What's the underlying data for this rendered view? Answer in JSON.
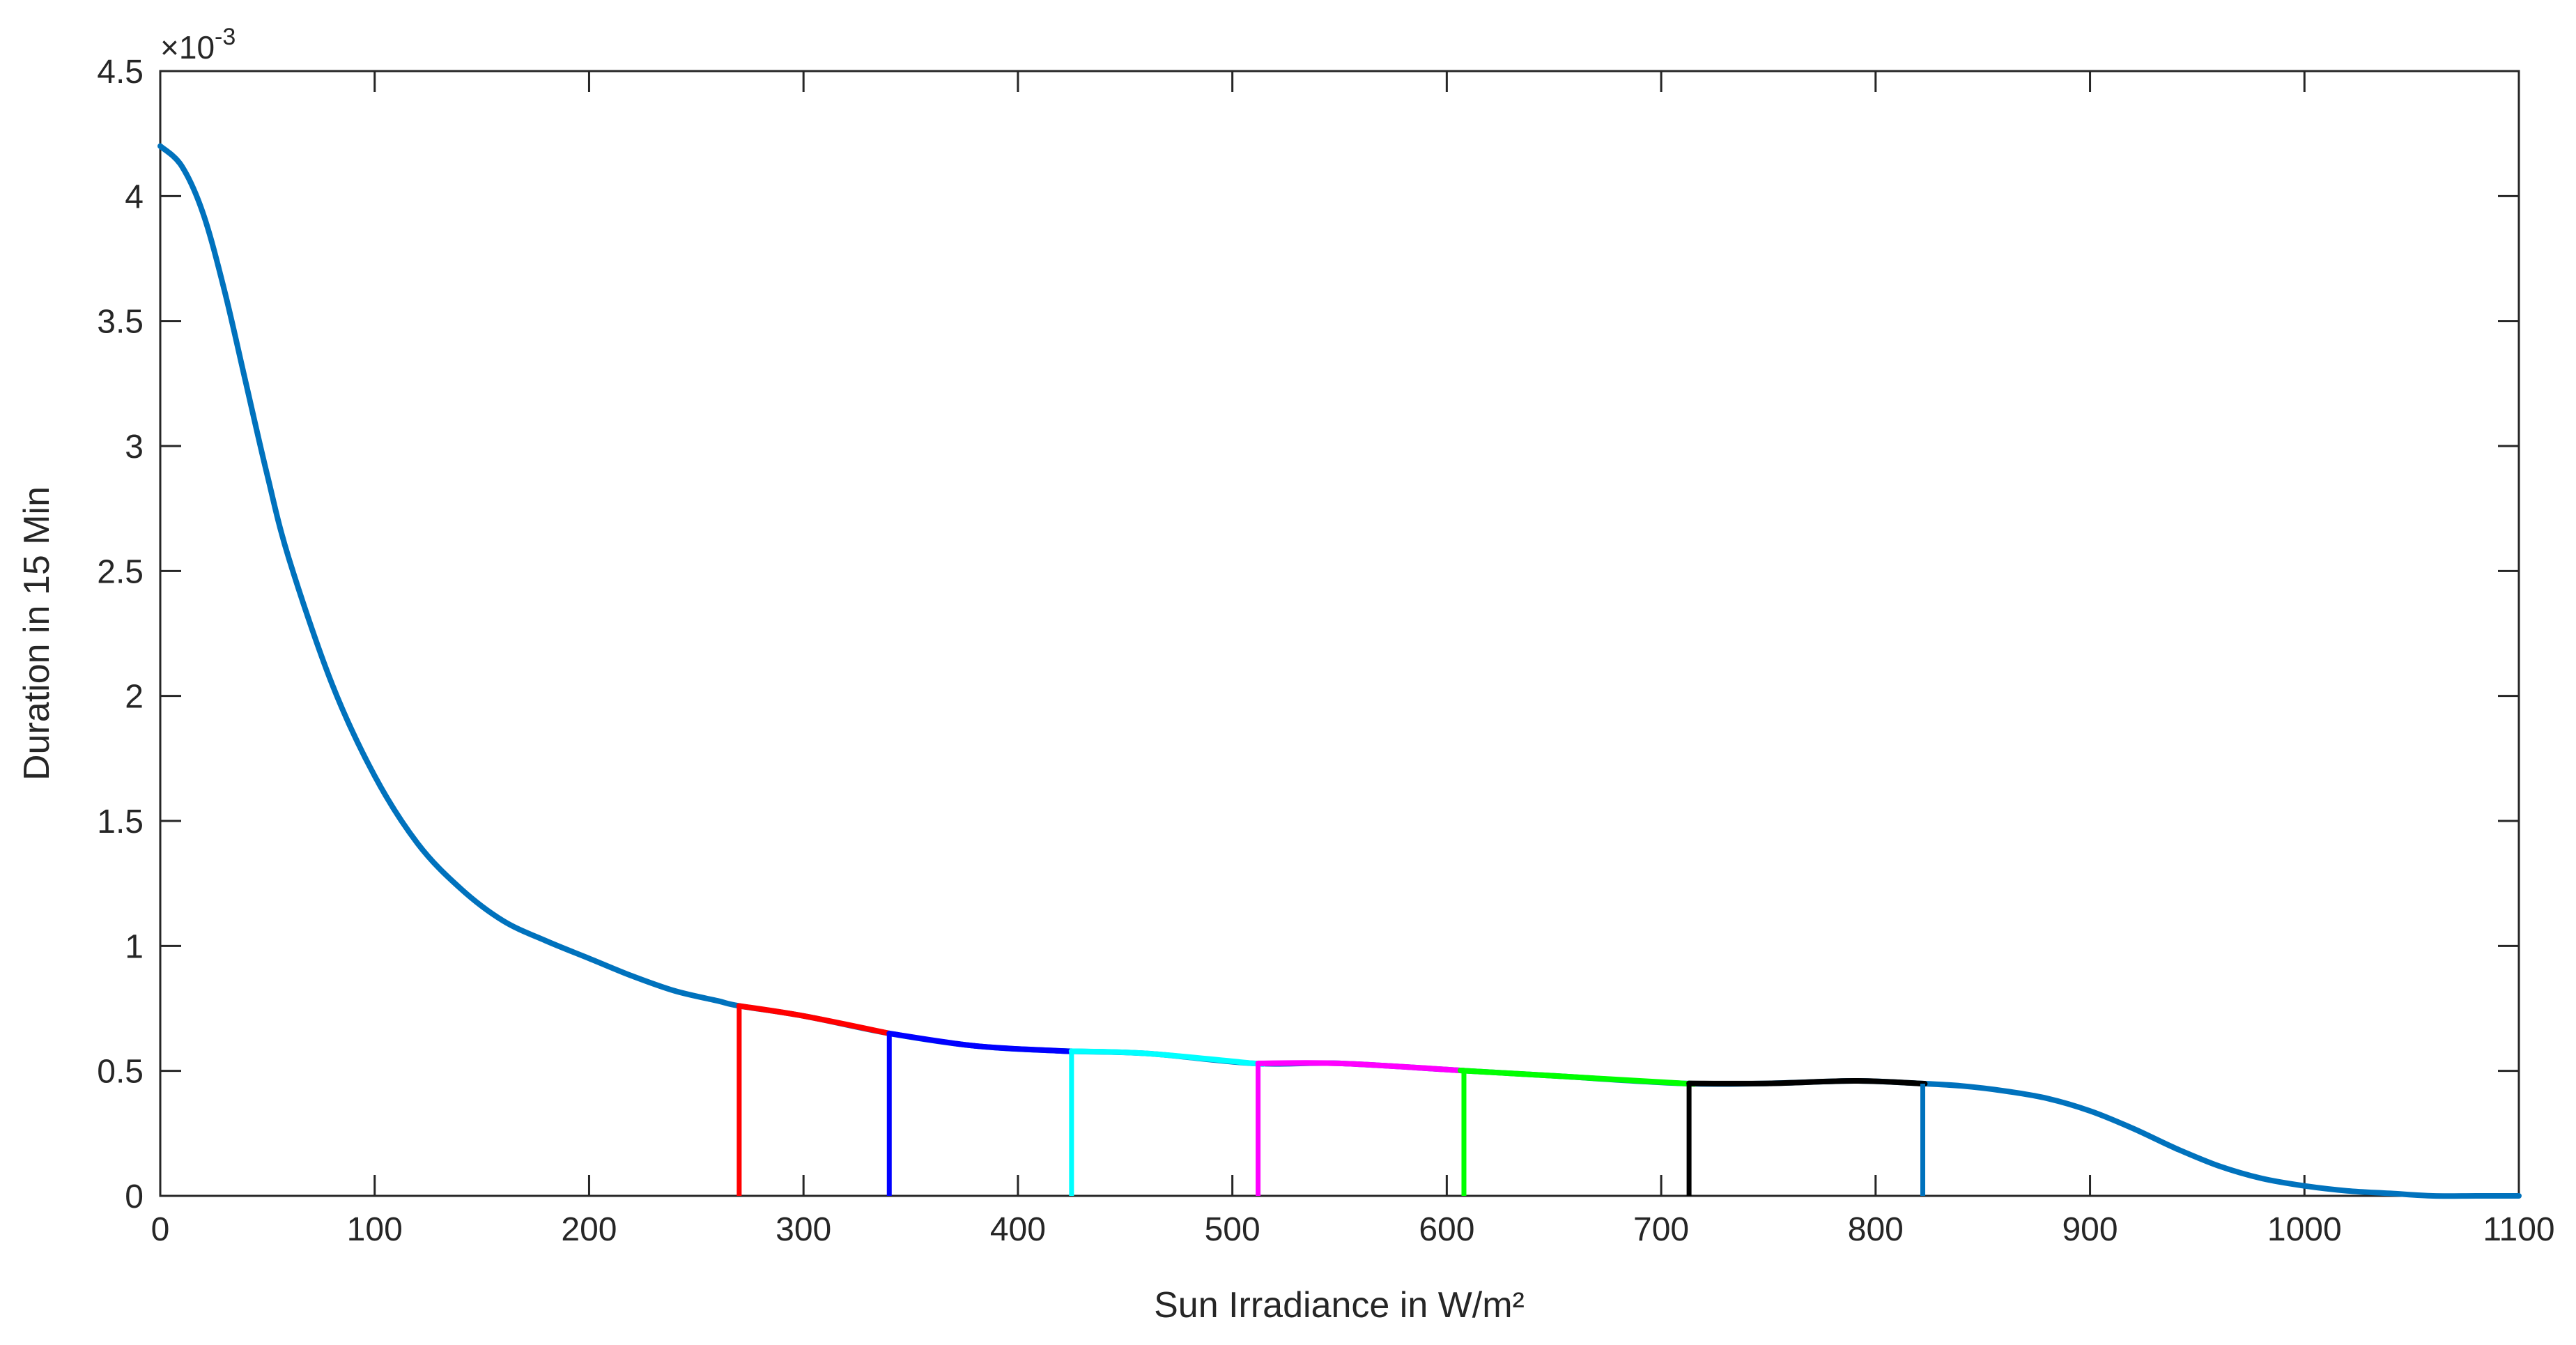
{
  "chart_data": {
    "type": "line",
    "title": "",
    "xlabel": "Sun Irradiance in W/m²",
    "ylabel": "Duration in 15 Min",
    "y_exponent_label": "×10",
    "y_exponent_power": "-3",
    "xlim": [
      0,
      1100
    ],
    "ylim": [
      0,
      4.5
    ],
    "y_scale_factor": 0.001,
    "x_ticks": [
      0,
      100,
      200,
      300,
      400,
      500,
      600,
      700,
      800,
      900,
      1000,
      1100
    ],
    "x_tick_labels": [
      "0",
      "100",
      "200",
      "300",
      "400",
      "500",
      "600",
      "700",
      "800",
      "900",
      "1000",
      "1100"
    ],
    "y_ticks": [
      0,
      0.5,
      1,
      1.5,
      2,
      2.5,
      3,
      3.5,
      4,
      4.5
    ],
    "y_tick_labels": [
      "0",
      "0.5",
      "1",
      "1.5",
      "2",
      "2.5",
      "3",
      "3.5",
      "4",
      "4.5"
    ],
    "grid": false,
    "legend": "none",
    "series": [
      {
        "color": "#0072BD",
        "x": [
          0,
          10,
          20,
          30,
          40,
          50,
          60,
          80,
          100,
          120,
          140,
          160,
          180,
          200,
          220,
          240,
          260,
          270,
          300,
          340,
          380,
          420,
          460,
          510,
          550,
          610,
          650,
          710,
          750,
          790,
          820,
          840,
          860,
          880,
          900,
          920,
          940,
          960,
          980,
          1000,
          1020,
          1040,
          1060,
          1080,
          1100
        ],
        "y": [
          4.2,
          4.12,
          3.93,
          3.62,
          3.25,
          2.88,
          2.55,
          2.05,
          1.68,
          1.41,
          1.23,
          1.1,
          1.02,
          0.95,
          0.88,
          0.82,
          0.78,
          0.76,
          0.72,
          0.65,
          0.6,
          0.58,
          0.57,
          0.53,
          0.53,
          0.5,
          0.48,
          0.45,
          0.45,
          0.46,
          0.45,
          0.44,
          0.42,
          0.39,
          0.34,
          0.27,
          0.19,
          0.12,
          0.07,
          0.04,
          0.02,
          0.01,
          0.0,
          0.0,
          0.0
        ]
      }
    ],
    "highlighted_segments": [
      {
        "color": "#FF0000",
        "x_start": 270,
        "x_end": 340
      },
      {
        "color": "#0000FF",
        "x_start": 340,
        "x_end": 425
      },
      {
        "color": "#00FFFF",
        "x_start": 425,
        "x_end": 512
      },
      {
        "color": "#FF00FF",
        "x_start": 512,
        "x_end": 608
      },
      {
        "color": "#00FF00",
        "x_start": 608,
        "x_end": 713
      },
      {
        "color": "#000000",
        "x_start": 713,
        "x_end": 822
      },
      {
        "color": "#0072BD",
        "x_start": 822,
        "x_end": 822
      }
    ]
  }
}
